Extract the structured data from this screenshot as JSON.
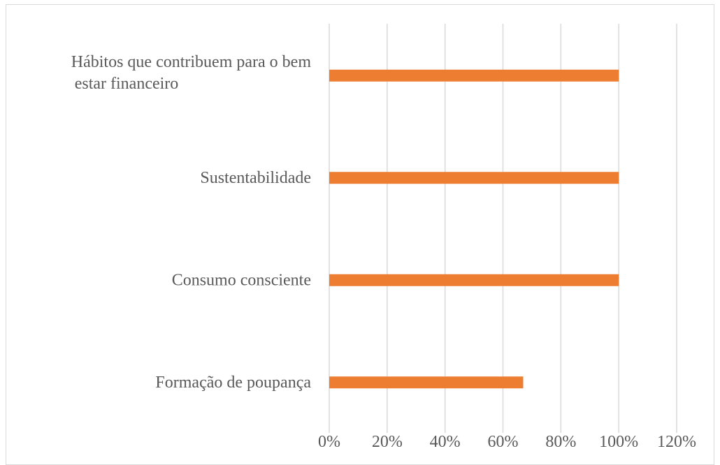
{
  "chart_data": {
    "type": "bar",
    "orientation": "horizontal",
    "categories": [
      [
        "Hábitos que contribuem para o bem",
        "estar financeiro"
      ],
      [
        "Sustentabilidade"
      ],
      [
        "Consumo consciente"
      ],
      [
        "Formação de poupança"
      ]
    ],
    "values": [
      1.0,
      1.0,
      1.0,
      0.67
    ],
    "xlim": [
      0,
      1.2
    ],
    "x_ticks": [
      "0%",
      "20%",
      "40%",
      "60%",
      "80%",
      "100%",
      "120%"
    ],
    "grid": true,
    "bar_color": "#ED7D31",
    "grid_color": "#D9D9D9",
    "title": "",
    "xlabel": "",
    "ylabel": ""
  }
}
